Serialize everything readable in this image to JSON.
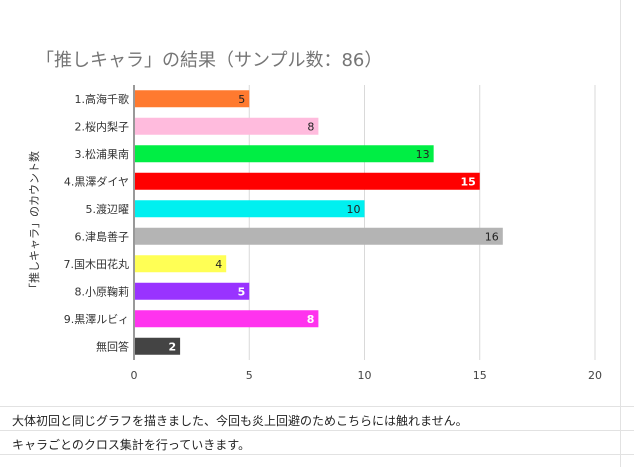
{
  "chart_data": {
    "type": "bar",
    "orientation": "horizontal",
    "title": "「推しキャラ」の結果（サンプル数：86）",
    "ylabel": "「推しキャラ」のカウント数",
    "xlabel": "",
    "xlim": [
      0,
      20
    ],
    "xticks": [
      "0",
      "5",
      "10",
      "15",
      "20"
    ],
    "grid": true,
    "legend": "none",
    "categories": [
      "1.高海千歌",
      "2.桜内梨子",
      "3.松浦果南",
      "4.黒澤ダイヤ",
      "5.渡辺曜",
      "6.津島善子",
      "7.国木田花丸",
      "8.小原鞠莉",
      "9.黒澤ルビィ",
      "無回答"
    ],
    "values": [
      5,
      8,
      13,
      15,
      10,
      16,
      4,
      5,
      8,
      2
    ],
    "colors": [
      "#ff7a2f",
      "#ffbbdd",
      "#00ee44",
      "#ff0000",
      "#00f0f0",
      "#b4b4b4",
      "#ffff55",
      "#9933ff",
      "#ff33ee",
      "#444444"
    ],
    "label_colors": [
      "#222222",
      "#222222",
      "#222222",
      "#ffffff",
      "#222222",
      "#222222",
      "#222222",
      "#ffffff",
      "#ffffff",
      "#ffffff"
    ]
  },
  "notes": [
    "大体初回と同じグラフを描きました、今回も炎上回避のためこちらには触れません。",
    "キャラごとのクロス集計を行っていきます。"
  ]
}
